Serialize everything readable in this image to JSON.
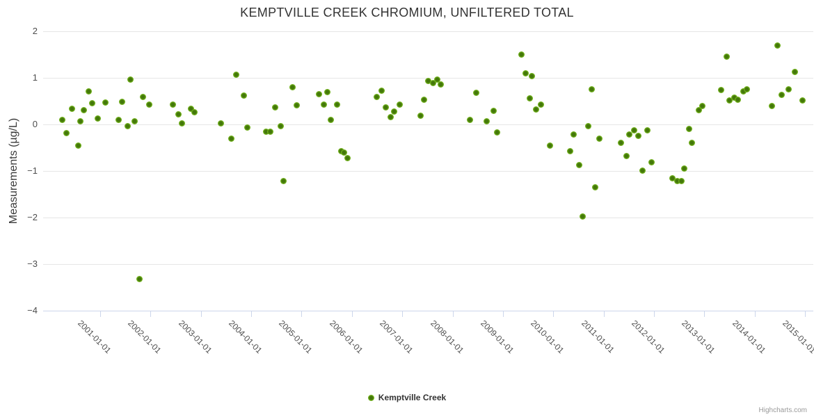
{
  "title": "KEMPTVILLE CREEK CHROMIUM, UNFILTERED TOTAL",
  "legend": {
    "series_label": "Kemptville Creek"
  },
  "credits": {
    "text": "Highcharts.com"
  },
  "colors": {
    "marker_outer": "#72b21d",
    "marker_core": "#44780a",
    "grid": "#e6e6e6",
    "axis_line": "#ccd6eb",
    "title_text": "#333333",
    "label_text": "#4d4d4d",
    "credits_text": "#999999"
  },
  "chart_data": {
    "type": "scatter",
    "title": "KEMPTVILLE CREEK CHROMIUM, UNFILTERED TOTAL",
    "xlabel": "",
    "ylabel": "Measurements (µg/L)",
    "x_unit": "decimal year (datetime axis)",
    "ylim": [
      -4,
      2
    ],
    "xlim": [
      1999.87,
      2015.17
    ],
    "grid": "horizontal-only",
    "legend_position": "bottom-center",
    "y_ticks": [
      2,
      1,
      0,
      -1,
      -2,
      -3,
      -4
    ],
    "x_ticks_years": [
      2001,
      2002,
      2003,
      2004,
      2005,
      2006,
      2007,
      2008,
      2009,
      2010,
      2011,
      2012,
      2013,
      2014,
      2015
    ],
    "x_tick_labels": [
      "2001-01-01",
      "2002-01-01",
      "2003-01-01",
      "2004-01-01",
      "2005-01-01",
      "2006-01-01",
      "2007-01-01",
      "2008-01-01",
      "2009-01-01",
      "2010-01-01",
      "2011-01-01",
      "2012-01-01",
      "2013-01-01",
      "2014-01-01",
      "2015-01-01"
    ],
    "series": [
      {
        "name": "Kemptville Creek",
        "points": [
          [
            2000.25,
            0.1
          ],
          [
            2000.33,
            -0.18
          ],
          [
            2000.44,
            0.34
          ],
          [
            2000.56,
            -0.45
          ],
          [
            2000.61,
            0.07
          ],
          [
            2000.68,
            0.3
          ],
          [
            2000.77,
            0.71
          ],
          [
            2000.84,
            0.45
          ],
          [
            2000.95,
            0.12
          ],
          [
            2001.11,
            0.47
          ],
          [
            2001.36,
            0.1
          ],
          [
            2001.44,
            0.49
          ],
          [
            2001.55,
            -0.04
          ],
          [
            2001.6,
            0.96
          ],
          [
            2001.68,
            0.06
          ],
          [
            2001.78,
            -3.32
          ],
          [
            2001.85,
            0.59
          ],
          [
            2001.97,
            0.42
          ],
          [
            2002.44,
            0.43
          ],
          [
            2002.56,
            0.21
          ],
          [
            2002.63,
            0.02
          ],
          [
            2002.8,
            0.33
          ],
          [
            2002.87,
            0.26
          ],
          [
            2003.4,
            0.02
          ],
          [
            2003.6,
            -0.3
          ],
          [
            2003.7,
            1.06
          ],
          [
            2003.85,
            0.62
          ],
          [
            2003.92,
            -0.06
          ],
          [
            2004.29,
            -0.16
          ],
          [
            2004.38,
            -0.15
          ],
          [
            2004.48,
            0.36
          ],
          [
            2004.58,
            -0.03
          ],
          [
            2004.64,
            -1.21
          ],
          [
            2004.82,
            0.8
          ],
          [
            2004.9,
            0.41
          ],
          [
            2005.35,
            0.65
          ],
          [
            2005.44,
            0.42
          ],
          [
            2005.51,
            0.69
          ],
          [
            2005.58,
            0.1
          ],
          [
            2005.7,
            0.43
          ],
          [
            2005.79,
            -0.57
          ],
          [
            2005.85,
            -0.6
          ],
          [
            2005.91,
            -0.72
          ],
          [
            2006.5,
            0.59
          ],
          [
            2006.59,
            0.72
          ],
          [
            2006.67,
            0.36
          ],
          [
            2006.77,
            0.16
          ],
          [
            2006.84,
            0.28
          ],
          [
            2006.95,
            0.43
          ],
          [
            2007.36,
            0.18
          ],
          [
            2007.44,
            0.53
          ],
          [
            2007.52,
            0.94
          ],
          [
            2007.61,
            0.89
          ],
          [
            2007.7,
            0.97
          ],
          [
            2007.77,
            0.86
          ],
          [
            2008.35,
            0.1
          ],
          [
            2008.47,
            0.68
          ],
          [
            2008.67,
            0.06
          ],
          [
            2008.81,
            0.29
          ],
          [
            2008.89,
            -0.17
          ],
          [
            2009.37,
            1.5
          ],
          [
            2009.45,
            1.1
          ],
          [
            2009.53,
            0.56
          ],
          [
            2009.57,
            1.03
          ],
          [
            2009.66,
            0.32
          ],
          [
            2009.75,
            0.42
          ],
          [
            2009.93,
            -0.45
          ],
          [
            2010.33,
            -0.58
          ],
          [
            2010.4,
            -0.21
          ],
          [
            2010.51,
            -0.87
          ],
          [
            2010.58,
            -1.98
          ],
          [
            2010.69,
            -0.04
          ],
          [
            2010.77,
            0.75
          ],
          [
            2010.83,
            -1.35
          ],
          [
            2010.91,
            -0.3
          ],
          [
            2011.34,
            -0.4
          ],
          [
            2011.45,
            -0.68
          ],
          [
            2011.51,
            -0.21
          ],
          [
            2011.61,
            -0.13
          ],
          [
            2011.69,
            -0.25
          ],
          [
            2011.77,
            -0.99
          ],
          [
            2011.87,
            -0.13
          ],
          [
            2011.95,
            -0.82
          ],
          [
            2012.37,
            -1.15
          ],
          [
            2012.47,
            -1.22
          ],
          [
            2012.54,
            -1.21
          ],
          [
            2012.6,
            -0.95
          ],
          [
            2012.7,
            -0.1
          ],
          [
            2012.76,
            -0.4
          ],
          [
            2012.89,
            0.3
          ],
          [
            2012.96,
            0.4
          ],
          [
            2013.34,
            0.74
          ],
          [
            2013.44,
            1.45
          ],
          [
            2013.5,
            0.51
          ],
          [
            2013.59,
            0.57
          ],
          [
            2013.66,
            0.53
          ],
          [
            2013.77,
            0.71
          ],
          [
            2013.84,
            0.75
          ],
          [
            2014.34,
            0.39
          ],
          [
            2014.46,
            1.7
          ],
          [
            2014.53,
            0.63
          ],
          [
            2014.67,
            0.76
          ],
          [
            2014.8,
            1.13
          ],
          [
            2014.95,
            0.52
          ]
        ]
      }
    ]
  }
}
